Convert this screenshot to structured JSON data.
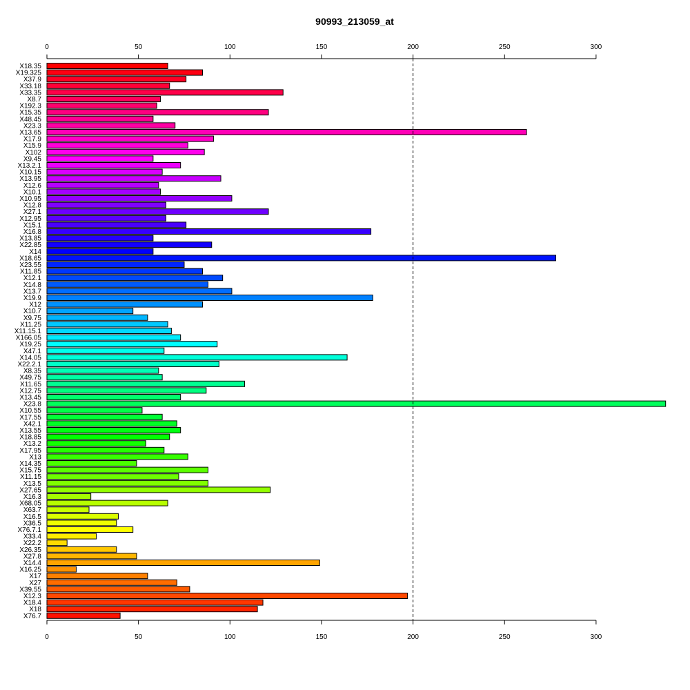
{
  "chart_data": {
    "type": "bar",
    "orientation": "horizontal",
    "title": "90993_213059_at",
    "xlabel": "",
    "ylabel": "",
    "xlim": [
      0,
      340
    ],
    "x_ticks": [
      0,
      50,
      100,
      150,
      200,
      250,
      300
    ],
    "x_tick_labels": [
      "0",
      "50",
      "100",
      "150",
      "200",
      "250",
      "300"
    ],
    "reference_line": 200,
    "reference_line_style": "dashed",
    "grid": false,
    "legend": "none",
    "color_scheme": "rainbow",
    "categories": [
      "X18.35",
      "X19.325",
      "X37.9",
      "X33.18",
      "X33.35",
      "X8.7",
      "X192.3",
      "X15.35",
      "X48.45",
      "X23.3",
      "X13.65",
      "X17.9",
      "X15.9",
      "X102",
      "X9.45",
      "X13.2.1",
      "X10.15",
      "X13.95",
      "X12.6",
      "X10.1",
      "X10.95",
      "X12.8",
      "X27.1",
      "X12.95",
      "X15.1",
      "X16.8",
      "X13.85",
      "X22.85",
      "X14",
      "X18.65",
      "X23.55",
      "X11.85",
      "X12.1",
      "X14.8",
      "X13.7",
      "X19.9",
      "X12",
      "X10.7",
      "X9.75",
      "X11.25",
      "X11.15.1",
      "X166.05",
      "X19.25",
      "X47.1",
      "X14.05",
      "X22.2.1",
      "X8.35",
      "X49.75",
      "X11.65",
      "X12.75",
      "X13.45",
      "X23.8",
      "X10.55",
      "X17.55",
      "X42.1",
      "X13.55",
      "X18.85",
      "X13.2",
      "X17.95",
      "X13",
      "X14.35",
      "X15.75",
      "X11.15",
      "X13.5",
      "X27.65",
      "X16.3",
      "X68.05",
      "X63.7",
      "X16.5",
      "X36.5",
      "X76.7.1",
      "X33.4",
      "X22.2",
      "X26.35",
      "X27.8",
      "X14.4",
      "X16.25",
      "X17",
      "X27",
      "X39.55",
      "X12.3",
      "X18.4",
      "X18",
      "X76.7"
    ],
    "values": [
      66,
      85,
      76,
      67,
      129,
      62,
      60,
      121,
      58,
      70,
      262,
      91,
      77,
      86,
      58,
      73,
      63,
      95,
      61,
      62,
      101,
      65,
      121,
      65,
      76,
      177,
      58,
      90,
      58,
      278,
      75,
      85,
      96,
      88,
      101,
      178,
      85,
      47,
      55,
      66,
      68,
      73,
      93,
      64,
      164,
      94,
      61,
      63,
      108,
      87,
      73,
      338,
      52,
      63,
      71,
      73,
      67,
      54,
      64,
      77,
      49,
      88,
      72,
      88,
      122,
      24,
      66,
      23,
      39,
      38,
      47,
      27,
      11,
      38,
      49,
      149,
      16,
      55,
      71,
      78,
      197,
      118,
      115,
      40
    ]
  }
}
